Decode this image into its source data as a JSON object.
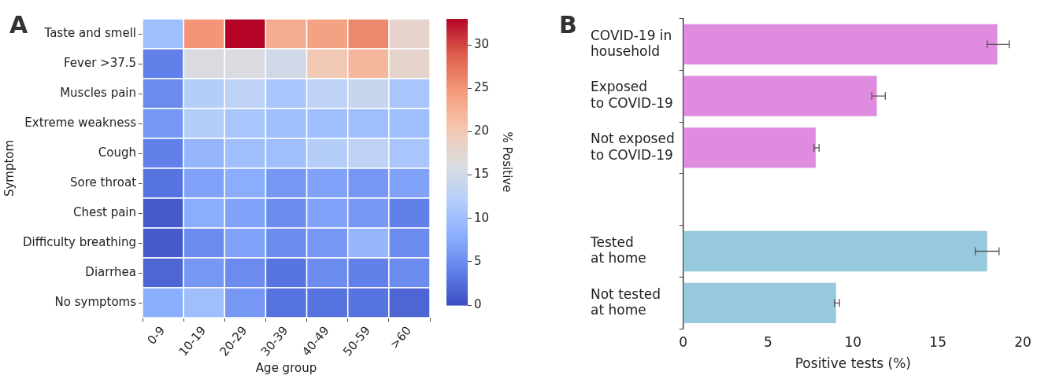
{
  "chart_data": [
    {
      "type": "heatmap",
      "title": "A",
      "xlabel": "Age group",
      "ylabel": "Symptom",
      "clabel": "% Positive",
      "categories": [
        "0-9",
        "10-19",
        "20-29",
        "30-39",
        "40-49",
        "50-59",
        ">60"
      ],
      "y_categories": [
        "Taste and smell",
        "Fever >37.5",
        "Muscles pain",
        "Extreme weakness",
        "Cough",
        "Sore throat",
        "Chest pain",
        "Difficulty breathing",
        "Diarrhea",
        "No symptoms"
      ],
      "cells": [
        [
          10,
          25,
          33,
          23,
          24,
          26,
          18
        ],
        [
          4,
          16,
          16,
          15,
          20,
          22,
          18
        ],
        [
          5,
          12,
          13,
          11,
          13,
          14,
          11
        ],
        [
          6,
          12,
          11,
          10,
          10,
          10,
          10
        ],
        [
          4,
          9,
          10,
          10,
          12,
          13,
          11
        ],
        [
          3,
          7,
          8,
          6,
          7,
          6,
          7
        ],
        [
          1,
          8,
          7,
          5,
          7,
          6,
          4
        ],
        [
          1,
          5,
          7,
          5,
          6,
          9,
          5
        ],
        [
          2,
          6,
          5,
          3,
          5,
          4,
          5
        ],
        [
          8,
          10,
          6,
          3,
          3,
          3,
          2
        ]
      ],
      "clim": [
        0,
        33
      ],
      "cticks": [
        0,
        5,
        10,
        15,
        20,
        25,
        30
      ]
    },
    {
      "type": "bar",
      "orientation": "horizontal",
      "title": "B",
      "xlabel": "Positive tests (%)",
      "categories": [
        "COVID-19 in\nhousehold",
        "Exposed\nto COVID-19",
        "Not exposed\nto COVID-19",
        null,
        "Tested\nat home",
        "Not tested\nat home"
      ],
      "values": [
        18.5,
        11.4,
        7.8,
        null,
        17.9,
        9.0
      ],
      "colors": [
        "#df8ce0",
        "#df8ce0",
        "#df8ce0",
        null,
        "#96c8de",
        "#96c8de"
      ],
      "errors": [
        [
          17.9,
          19.2
        ],
        [
          11.1,
          11.9
        ],
        [
          7.7,
          8.0
        ],
        null,
        [
          17.2,
          18.6
        ],
        [
          8.9,
          9.2
        ]
      ],
      "xlim": [
        0,
        20
      ],
      "xticks": [
        0,
        5,
        10,
        15,
        20
      ]
    }
  ]
}
